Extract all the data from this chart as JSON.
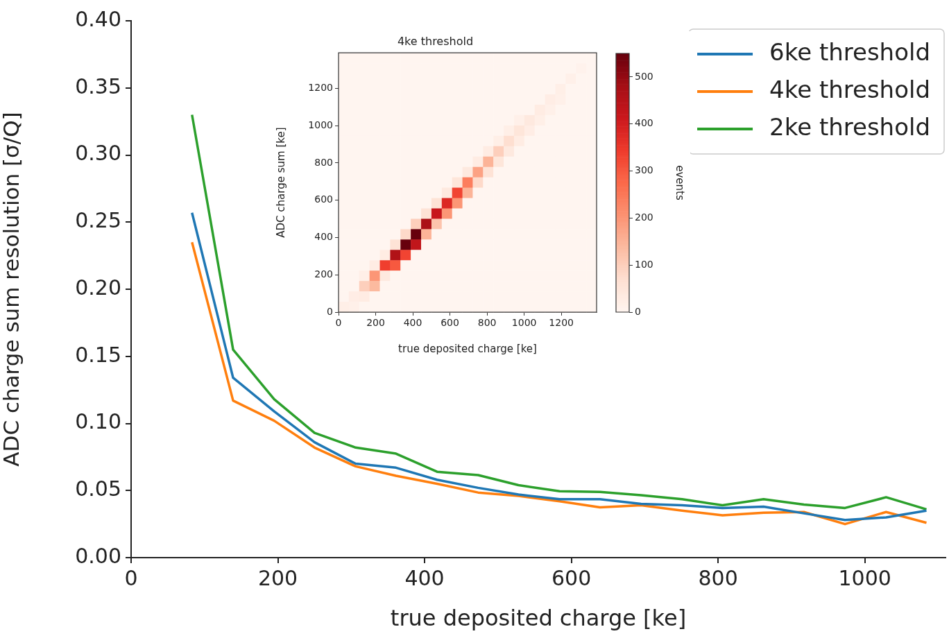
{
  "chart_data": [
    {
      "type": "line",
      "xlabel": "true deposited charge [ke]",
      "ylabel": "ADC charge sum resolution [σ/Q]",
      "x": [
        83,
        139,
        195,
        250,
        306,
        361,
        417,
        473,
        528,
        584,
        639,
        695,
        751,
        806,
        862,
        917,
        973,
        1029,
        1084
      ],
      "series": [
        {
          "name": "6ke threshold",
          "color": "#1f77b4",
          "values": [
            0.257,
            0.134,
            0.109,
            0.086,
            0.07,
            0.067,
            0.058,
            0.052,
            0.047,
            0.0435,
            0.0435,
            0.04,
            0.039,
            0.037,
            0.038,
            0.033,
            0.028,
            0.03,
            0.035
          ]
        },
        {
          "name": "4ke threshold",
          "color": "#ff7f0e",
          "values": [
            0.235,
            0.117,
            0.102,
            0.082,
            0.068,
            0.061,
            0.055,
            0.0485,
            0.046,
            0.042,
            0.0375,
            0.039,
            0.035,
            0.0315,
            0.0335,
            0.034,
            0.025,
            0.034,
            0.026
          ]
        },
        {
          "name": "2ke threshold",
          "color": "#2ca02c",
          "values": [
            0.33,
            0.155,
            0.118,
            0.093,
            0.082,
            0.0775,
            0.064,
            0.0615,
            0.054,
            0.0495,
            0.049,
            0.0465,
            0.0435,
            0.039,
            0.0435,
            0.0395,
            0.037,
            0.045,
            0.036
          ]
        }
      ],
      "xlim": [
        0,
        1110
      ],
      "xticks": [
        0,
        200,
        400,
        600,
        800,
        1000
      ],
      "ylim": [
        0,
        0.4
      ],
      "yticks": [
        {
          "value": 0,
          "label": "0.00"
        },
        {
          "value": 0.05,
          "label": "0.05"
        },
        {
          "value": 0.1,
          "label": "0.10"
        },
        {
          "value": 0.15,
          "label": "0.15"
        },
        {
          "value": 0.2,
          "label": "0.20"
        },
        {
          "value": 0.25,
          "label": "0.25"
        },
        {
          "value": 0.3,
          "label": "0.30"
        },
        {
          "value": 0.35,
          "label": "0.35"
        },
        {
          "value": 0.4,
          "label": "0.40"
        }
      ],
      "legend": "top right"
    },
    {
      "type": "heatmap",
      "title": "4ke threshold",
      "xlabel": "true deposited charge [ke]",
      "ylabel": "ADC charge sum [ke]",
      "clabel": "events",
      "x": [
        27.8,
        83.4,
        139,
        194.6,
        250.2,
        305.8,
        361.4,
        417,
        472.6,
        528.2,
        583.8,
        639.4,
        695,
        750.6,
        806.2,
        861.8,
        917.4,
        973,
        1028.6,
        1084.2,
        1139.8,
        1195.4,
        1251,
        1306.6,
        1362.2
      ],
      "y": [
        1362.2,
        1306.6,
        1251,
        1195.4,
        1139.8,
        1084.2,
        1028.6,
        973,
        917.4,
        861.8,
        806.2,
        750.6,
        695,
        639.4,
        583.8,
        528.2,
        472.6,
        417,
        361.4,
        305.8,
        250.2,
        194.6,
        139,
        83.4,
        27.8
      ],
      "xlim": [
        0,
        1390
      ],
      "ylim": [
        0,
        1390
      ],
      "xticks": [
        0,
        200,
        400,
        600,
        800,
        1000,
        1200
      ],
      "yticks": [
        0,
        200,
        400,
        600,
        800,
        1000,
        1200
      ],
      "clim": [
        0,
        550
      ],
      "cticks": [
        0,
        100,
        200,
        300,
        400,
        500
      ],
      "cells": [
        [
          0,
          0,
          0,
          0,
          0,
          0,
          0,
          0,
          0,
          0,
          0,
          0,
          0,
          0,
          0,
          0,
          0,
          0,
          0,
          0,
          0,
          0,
          0,
          0,
          0
        ],
        [
          0,
          0,
          0,
          0,
          0,
          0,
          0,
          0,
          0,
          0,
          0,
          0,
          0,
          0,
          0,
          0,
          0,
          0,
          0,
          0,
          0,
          0,
          0,
          10,
          0
        ],
        [
          0,
          0,
          0,
          0,
          0,
          0,
          0,
          0,
          0,
          0,
          0,
          0,
          0,
          0,
          0,
          0,
          0,
          0,
          0,
          0,
          0,
          0,
          15,
          0,
          0
        ],
        [
          0,
          0,
          0,
          0,
          0,
          0,
          0,
          0,
          0,
          0,
          0,
          0,
          0,
          0,
          0,
          0,
          0,
          0,
          0,
          0,
          0,
          20,
          0,
          0,
          0
        ],
        [
          0,
          0,
          0,
          0,
          0,
          0,
          0,
          0,
          0,
          0,
          0,
          0,
          0,
          0,
          0,
          0,
          0,
          0,
          0,
          0,
          25,
          15,
          0,
          0,
          0
        ],
        [
          0,
          0,
          0,
          0,
          0,
          0,
          0,
          0,
          0,
          0,
          0,
          0,
          0,
          0,
          0,
          0,
          0,
          0,
          0,
          30,
          15,
          0,
          0,
          0,
          0
        ],
        [
          0,
          0,
          0,
          0,
          0,
          0,
          0,
          0,
          0,
          0,
          0,
          0,
          0,
          0,
          0,
          0,
          0,
          15,
          40,
          20,
          0,
          0,
          0,
          0,
          0
        ],
        [
          0,
          0,
          0,
          0,
          0,
          0,
          0,
          0,
          0,
          0,
          0,
          0,
          0,
          0,
          0,
          0,
          20,
          50,
          25,
          0,
          0,
          0,
          0,
          0,
          0
        ],
        [
          0,
          0,
          0,
          0,
          0,
          0,
          0,
          0,
          0,
          0,
          0,
          0,
          0,
          0,
          0,
          20,
          70,
          30,
          0,
          0,
          0,
          0,
          0,
          0,
          0
        ],
        [
          0,
          0,
          0,
          0,
          0,
          0,
          0,
          0,
          0,
          0,
          0,
          0,
          0,
          0,
          30,
          100,
          40,
          0,
          0,
          0,
          0,
          0,
          0,
          0,
          0
        ],
        [
          0,
          0,
          0,
          0,
          0,
          0,
          0,
          0,
          0,
          0,
          0,
          0,
          0,
          30,
          150,
          50,
          0,
          0,
          0,
          0,
          0,
          0,
          0,
          0,
          0
        ],
        [
          0,
          0,
          0,
          0,
          0,
          0,
          0,
          0,
          0,
          0,
          0,
          0,
          40,
          180,
          60,
          0,
          0,
          0,
          0,
          0,
          0,
          0,
          0,
          0,
          0
        ],
        [
          0,
          0,
          0,
          0,
          0,
          0,
          0,
          0,
          0,
          0,
          0,
          50,
          240,
          80,
          0,
          0,
          0,
          0,
          0,
          0,
          0,
          0,
          0,
          0,
          0
        ],
        [
          0,
          0,
          0,
          0,
          0,
          0,
          0,
          0,
          0,
          0,
          40,
          330,
          150,
          0,
          0,
          0,
          0,
          0,
          0,
          0,
          0,
          0,
          0,
          0,
          0
        ],
        [
          0,
          0,
          0,
          0,
          0,
          0,
          0,
          0,
          0,
          60,
          380,
          200,
          0,
          0,
          0,
          0,
          0,
          0,
          0,
          0,
          0,
          0,
          0,
          0,
          0
        ],
        [
          0,
          0,
          0,
          0,
          0,
          0,
          0,
          0,
          60,
          420,
          200,
          0,
          0,
          0,
          0,
          0,
          0,
          0,
          0,
          0,
          0,
          0,
          0,
          0,
          0
        ],
        [
          0,
          0,
          0,
          0,
          0,
          0,
          0,
          100,
          470,
          120,
          0,
          0,
          0,
          0,
          0,
          0,
          0,
          0,
          0,
          0,
          0,
          0,
          0,
          0,
          0
        ],
        [
          0,
          0,
          0,
          0,
          0,
          0,
          80,
          550,
          150,
          0,
          0,
          0,
          0,
          0,
          0,
          0,
          0,
          0,
          0,
          0,
          0,
          0,
          0,
          0,
          0
        ],
        [
          0,
          0,
          0,
          0,
          0,
          60,
          550,
          430,
          0,
          0,
          0,
          0,
          0,
          0,
          0,
          0,
          0,
          0,
          0,
          0,
          0,
          0,
          0,
          0,
          0
        ],
        [
          0,
          0,
          0,
          0,
          30,
          460,
          330,
          0,
          0,
          0,
          0,
          0,
          0,
          0,
          0,
          0,
          0,
          0,
          0,
          0,
          0,
          0,
          0,
          0,
          0
        ],
        [
          0,
          0,
          0,
          30,
          340,
          300,
          0,
          0,
          0,
          0,
          0,
          0,
          0,
          0,
          0,
          0,
          0,
          0,
          0,
          0,
          0,
          0,
          0,
          0,
          0
        ],
        [
          0,
          0,
          20,
          200,
          40,
          0,
          0,
          0,
          0,
          0,
          0,
          0,
          0,
          0,
          0,
          0,
          0,
          0,
          0,
          0,
          0,
          0,
          0,
          0,
          0
        ],
        [
          0,
          0,
          100,
          140,
          0,
          0,
          0,
          0,
          0,
          0,
          0,
          0,
          0,
          0,
          0,
          0,
          0,
          0,
          0,
          0,
          0,
          0,
          0,
          0,
          0
        ],
        [
          0,
          25,
          30,
          0,
          0,
          0,
          0,
          0,
          0,
          0,
          0,
          0,
          0,
          0,
          0,
          0,
          0,
          0,
          0,
          0,
          0,
          0,
          0,
          0,
          0
        ],
        [
          20,
          15,
          0,
          0,
          0,
          0,
          0,
          0,
          0,
          0,
          0,
          0,
          0,
          0,
          0,
          0,
          0,
          0,
          0,
          0,
          0,
          0,
          0,
          0,
          0
        ]
      ]
    }
  ]
}
